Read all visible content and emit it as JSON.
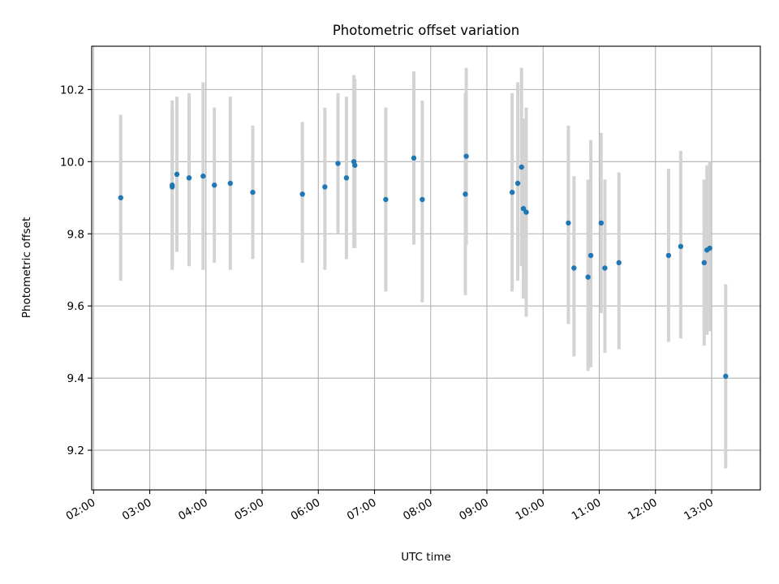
{
  "chart_data": {
    "type": "scatter",
    "title": "Photometric offset variation",
    "xlabel": "UTC time",
    "ylabel": "Photometric offset",
    "x_ticks": [
      "02:00",
      "03:00",
      "04:00",
      "05:00",
      "06:00",
      "07:00",
      "08:00",
      "09:00",
      "10:00",
      "11:00",
      "12:00",
      "13:00"
    ],
    "y_ticks": [
      "9.2",
      "9.4",
      "9.6",
      "9.8",
      "10.0",
      "10.2"
    ],
    "xlim": [
      "01:58",
      "13:52"
    ],
    "ylim": [
      9.09,
      10.32
    ],
    "grid": true,
    "colors": {
      "points": "#1f77b4",
      "errorbars": "#d3d3d3",
      "grid": "#b0b0b0"
    },
    "series": [
      {
        "points": [
          {
            "x": "02:29",
            "y": 9.9,
            "ylow": 9.67,
            "yhigh": 10.13
          },
          {
            "x": "03:24",
            "y": 9.93,
            "ylow": 9.7,
            "yhigh": 10.17
          },
          {
            "x": "03:24",
            "y": 9.935,
            "ylow": 9.71,
            "yhigh": 10.15
          },
          {
            "x": "03:29",
            "y": 9.965,
            "ylow": 9.75,
            "yhigh": 10.18
          },
          {
            "x": "03:42",
            "y": 9.955,
            "ylow": 9.71,
            "yhigh": 10.19
          },
          {
            "x": "03:57",
            "y": 9.96,
            "ylow": 9.7,
            "yhigh": 10.22
          },
          {
            "x": "04:09",
            "y": 9.935,
            "ylow": 9.72,
            "yhigh": 10.15
          },
          {
            "x": "04:26",
            "y": 9.94,
            "ylow": 9.7,
            "yhigh": 10.18
          },
          {
            "x": "04:50",
            "y": 9.915,
            "ylow": 9.73,
            "yhigh": 10.1
          },
          {
            "x": "05:43",
            "y": 9.91,
            "ylow": 9.72,
            "yhigh": 10.11
          },
          {
            "x": "06:07",
            "y": 9.93,
            "ylow": 9.7,
            "yhigh": 10.15
          },
          {
            "x": "06:21",
            "y": 9.995,
            "ylow": 9.8,
            "yhigh": 10.19
          },
          {
            "x": "06:30",
            "y": 9.955,
            "ylow": 9.73,
            "yhigh": 10.18
          },
          {
            "x": "06:38",
            "y": 10.0,
            "ylow": 9.76,
            "yhigh": 10.24
          },
          {
            "x": "06:39",
            "y": 9.99,
            "ylow": 9.76,
            "yhigh": 10.23
          },
          {
            "x": "07:12",
            "y": 9.895,
            "ylow": 9.64,
            "yhigh": 10.15
          },
          {
            "x": "07:42",
            "y": 10.01,
            "ylow": 9.77,
            "yhigh": 10.25
          },
          {
            "x": "07:51",
            "y": 9.895,
            "ylow": 9.61,
            "yhigh": 10.17
          },
          {
            "x": "08:37",
            "y": 9.91,
            "ylow": 9.63,
            "yhigh": 10.19
          },
          {
            "x": "08:38",
            "y": 10.015,
            "ylow": 9.77,
            "yhigh": 10.26
          },
          {
            "x": "09:27",
            "y": 9.915,
            "ylow": 9.64,
            "yhigh": 10.19
          },
          {
            "x": "09:33",
            "y": 9.94,
            "ylow": 9.67,
            "yhigh": 10.22
          },
          {
            "x": "09:37",
            "y": 9.985,
            "ylow": 9.71,
            "yhigh": 10.26
          },
          {
            "x": "09:39",
            "y": 9.87,
            "ylow": 9.62,
            "yhigh": 10.12
          },
          {
            "x": "09:42",
            "y": 9.86,
            "ylow": 9.57,
            "yhigh": 10.15
          },
          {
            "x": "10:27",
            "y": 9.83,
            "ylow": 9.55,
            "yhigh": 10.1
          },
          {
            "x": "10:33",
            "y": 9.705,
            "ylow": 9.46,
            "yhigh": 9.96
          },
          {
            "x": "10:48",
            "y": 9.68,
            "ylow": 9.42,
            "yhigh": 9.95
          },
          {
            "x": "10:51",
            "y": 9.74,
            "ylow": 9.43,
            "yhigh": 10.06
          },
          {
            "x": "11:02",
            "y": 9.83,
            "ylow": 9.58,
            "yhigh": 10.08
          },
          {
            "x": "11:06",
            "y": 9.705,
            "ylow": 9.47,
            "yhigh": 9.95
          },
          {
            "x": "11:21",
            "y": 9.72,
            "ylow": 9.48,
            "yhigh": 9.97
          },
          {
            "x": "12:14",
            "y": 9.74,
            "ylow": 9.5,
            "yhigh": 9.98
          },
          {
            "x": "12:27",
            "y": 9.765,
            "ylow": 9.51,
            "yhigh": 10.03
          },
          {
            "x": "12:52",
            "y": 9.72,
            "ylow": 9.49,
            "yhigh": 9.95
          },
          {
            "x": "12:55",
            "y": 9.755,
            "ylow": 9.52,
            "yhigh": 9.99
          },
          {
            "x": "12:58",
            "y": 9.76,
            "ylow": 9.53,
            "yhigh": 10.0
          },
          {
            "x": "13:15",
            "y": 9.405,
            "ylow": 9.15,
            "yhigh": 9.66
          }
        ]
      }
    ]
  }
}
